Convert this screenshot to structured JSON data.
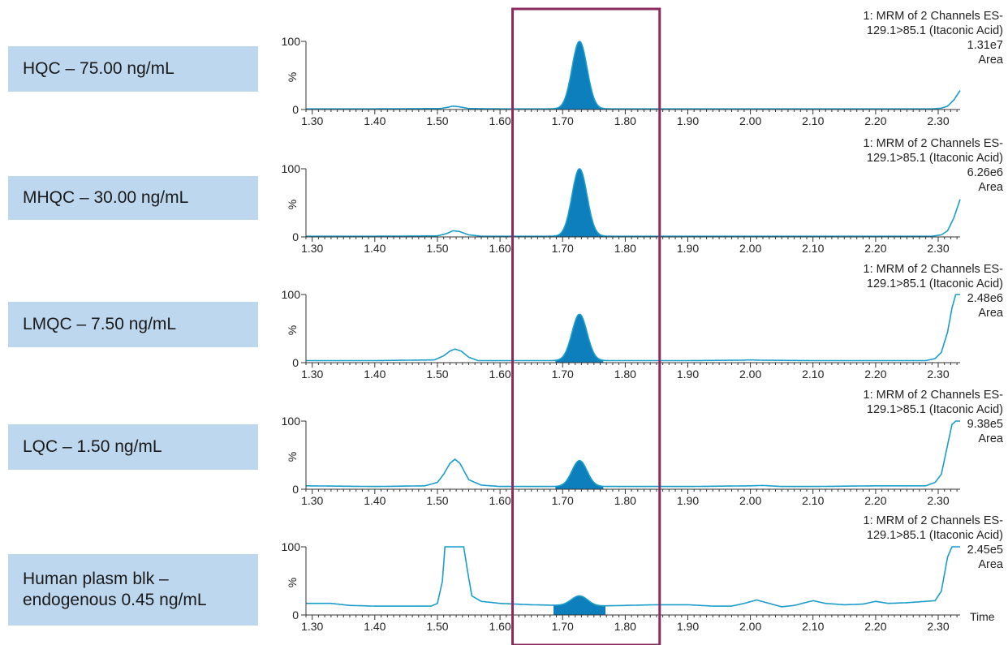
{
  "panels": [
    {
      "label_lines": [
        "HQC – 75.00 ng/mL"
      ],
      "info": {
        "line1": "1: MRM of 2 Channels ES-",
        "line2": "129.1>85.1 (Itaconic Acid)",
        "scale": "1.31e7",
        "mode": "Area"
      }
    },
    {
      "label_lines": [
        "MHQC – 30.00 ng/mL"
      ],
      "info": {
        "line1": "1: MRM of 2 Channels ES-",
        "line2": "129.1>85.1 (Itaconic Acid)",
        "scale": "6.26e6",
        "mode": "Area"
      }
    },
    {
      "label_lines": [
        "LMQC – 7.50 ng/mL"
      ],
      "info": {
        "line1": "1: MRM of 2 Channels ES-",
        "line2": "129.1>85.1 (Itaconic Acid)",
        "scale": "2.48e6",
        "mode": "Area"
      }
    },
    {
      "label_lines": [
        "LQC – 1.50 ng/mL"
      ],
      "info": {
        "line1": "1: MRM of 2 Channels ES-",
        "line2": "129.1>85.1 (Itaconic Acid)",
        "scale": "9.38e5",
        "mode": "Area"
      }
    },
    {
      "label_lines": [
        "Human plasm blk –",
        "endogenous 0.45 ng/mL"
      ],
      "info": {
        "line1": "1: MRM of 2 Channels ES-",
        "line2": "129.1>85.1 (Itaconic Acid)",
        "scale": "2.45e5",
        "mode": "Area"
      }
    }
  ],
  "chart_data": {
    "type": "line",
    "xlim": [
      1.29,
      2.335
    ],
    "ylim": [
      0,
      100
    ],
    "x_ticks": [
      "1.30",
      "1.40",
      "1.50",
      "1.60",
      "1.70",
      "1.80",
      "1.90",
      "2.00",
      "2.10",
      "2.20",
      "2.30"
    ],
    "y_ticks": [
      "0",
      "%",
      "100"
    ],
    "x_unit_label": "Time",
    "highlight_window": [
      1.62,
      1.855
    ],
    "line_color": "#1b9dc9",
    "fill_color": "#0e7fbd",
    "highlight_color": "#8b2a5f",
    "series": [
      {
        "peak": {
          "center": 1.727,
          "height": 100,
          "sigma": 0.012
        },
        "points": [
          [
            1.29,
            1
          ],
          [
            1.4,
            1
          ],
          [
            1.505,
            1.5
          ],
          [
            1.515,
            3
          ],
          [
            1.525,
            5
          ],
          [
            1.535,
            4
          ],
          [
            1.55,
            1.5
          ],
          [
            1.6,
            1
          ],
          [
            1.7,
            1
          ],
          [
            1.8,
            1
          ],
          [
            1.9,
            1
          ],
          [
            2.0,
            1
          ],
          [
            2.1,
            1
          ],
          [
            2.2,
            1
          ],
          [
            2.29,
            1
          ],
          [
            2.305,
            2
          ],
          [
            2.315,
            5
          ],
          [
            2.325,
            14
          ],
          [
            2.335,
            28
          ]
        ]
      },
      {
        "peak": {
          "center": 1.727,
          "height": 100,
          "sigma": 0.012
        },
        "points": [
          [
            1.29,
            1
          ],
          [
            1.4,
            1
          ],
          [
            1.5,
            1.5
          ],
          [
            1.515,
            5
          ],
          [
            1.525,
            9
          ],
          [
            1.535,
            8
          ],
          [
            1.55,
            3
          ],
          [
            1.57,
            1
          ],
          [
            1.7,
            1
          ],
          [
            1.8,
            1
          ],
          [
            1.9,
            1
          ],
          [
            2.0,
            1
          ],
          [
            2.1,
            1
          ],
          [
            2.2,
            1
          ],
          [
            2.29,
            1
          ],
          [
            2.305,
            3
          ],
          [
            2.315,
            9
          ],
          [
            2.325,
            28
          ],
          [
            2.335,
            55
          ]
        ]
      },
      {
        "peak": {
          "center": 1.727,
          "height": 71,
          "sigma": 0.012
        },
        "points": [
          [
            1.29,
            3
          ],
          [
            1.4,
            3
          ],
          [
            1.495,
            4
          ],
          [
            1.51,
            10
          ],
          [
            1.52,
            17
          ],
          [
            1.528,
            20
          ],
          [
            1.538,
            17
          ],
          [
            1.55,
            8
          ],
          [
            1.565,
            3
          ],
          [
            1.6,
            3
          ],
          [
            1.7,
            3
          ],
          [
            1.8,
            3
          ],
          [
            1.9,
            3
          ],
          [
            1.98,
            3.5
          ],
          [
            2.0,
            4
          ],
          [
            2.02,
            3.5
          ],
          [
            2.1,
            3
          ],
          [
            2.2,
            3
          ],
          [
            2.28,
            3
          ],
          [
            2.295,
            6
          ],
          [
            2.305,
            15
          ],
          [
            2.315,
            45
          ],
          [
            2.322,
            80
          ],
          [
            2.328,
            100
          ],
          [
            2.335,
            100
          ]
        ]
      },
      {
        "peak": {
          "center": 1.727,
          "height": 42,
          "sigma": 0.012
        },
        "points": [
          [
            1.29,
            5
          ],
          [
            1.4,
            4
          ],
          [
            1.48,
            5
          ],
          [
            1.5,
            10
          ],
          [
            1.51,
            22
          ],
          [
            1.52,
            38
          ],
          [
            1.528,
            44
          ],
          [
            1.536,
            38
          ],
          [
            1.55,
            14
          ],
          [
            1.57,
            6
          ],
          [
            1.6,
            4
          ],
          [
            1.7,
            4
          ],
          [
            1.8,
            4
          ],
          [
            1.9,
            4
          ],
          [
            2.0,
            5
          ],
          [
            2.02,
            5.5
          ],
          [
            2.05,
            4
          ],
          [
            2.1,
            4
          ],
          [
            2.2,
            5
          ],
          [
            2.28,
            5
          ],
          [
            2.295,
            10
          ],
          [
            2.305,
            22
          ],
          [
            2.315,
            65
          ],
          [
            2.322,
            95
          ],
          [
            2.328,
            100
          ],
          [
            2.335,
            100
          ]
        ]
      },
      {
        "peak": {
          "center": 1.727,
          "height": 28,
          "sigma": 0.013
        },
        "points": [
          [
            1.29,
            17
          ],
          [
            1.33,
            17
          ],
          [
            1.36,
            14
          ],
          [
            1.4,
            13
          ],
          [
            1.45,
            13
          ],
          [
            1.49,
            13
          ],
          [
            1.5,
            17
          ],
          [
            1.508,
            50
          ],
          [
            1.512,
            100
          ],
          [
            1.542,
            100
          ],
          [
            1.548,
            65
          ],
          [
            1.555,
            28
          ],
          [
            1.57,
            20
          ],
          [
            1.6,
            17
          ],
          [
            1.65,
            15
          ],
          [
            1.7,
            14
          ],
          [
            1.75,
            13
          ],
          [
            1.8,
            14
          ],
          [
            1.85,
            15
          ],
          [
            1.9,
            15
          ],
          [
            1.94,
            13
          ],
          [
            1.97,
            13
          ],
          [
            1.99,
            17
          ],
          [
            2.01,
            22
          ],
          [
            2.03,
            17
          ],
          [
            2.05,
            12
          ],
          [
            2.07,
            14
          ],
          [
            2.1,
            21
          ],
          [
            2.12,
            17
          ],
          [
            2.15,
            15
          ],
          [
            2.18,
            16
          ],
          [
            2.2,
            20
          ],
          [
            2.22,
            17
          ],
          [
            2.25,
            18
          ],
          [
            2.28,
            20
          ],
          [
            2.295,
            21
          ],
          [
            2.305,
            35
          ],
          [
            2.315,
            85
          ],
          [
            2.322,
            100
          ],
          [
            2.335,
            100
          ]
        ]
      }
    ]
  }
}
